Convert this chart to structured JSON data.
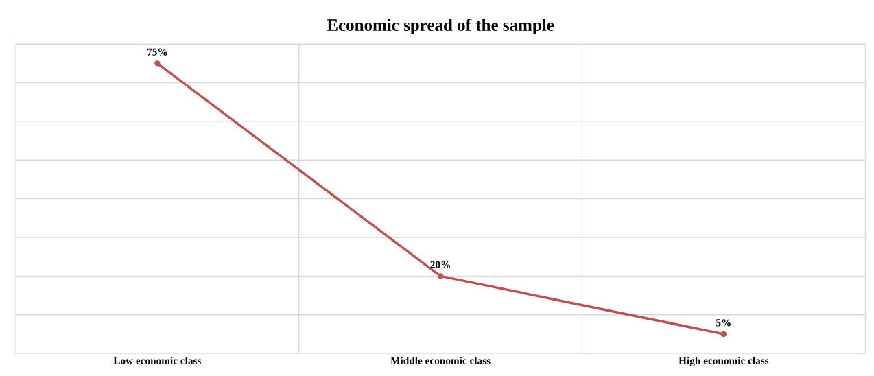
{
  "chart_data": {
    "type": "line",
    "title": "Economic spread of the sample",
    "categories": [
      "Low economic class",
      "Middle economic class",
      "High economic class"
    ],
    "series": [
      {
        "color": "#c0504d",
        "values": [
          75,
          20,
          5
        ],
        "value_labels": [
          "75%",
          "20%",
          "5%"
        ]
      }
    ],
    "ylim": [
      0,
      80
    ],
    "yticks": [
      {
        "value": 0,
        "label": null
      },
      {
        "value": 10,
        "label": null
      },
      {
        "value": 20,
        "label": null
      },
      {
        "value": 30,
        "label": null
      },
      {
        "value": 40,
        "label": null
      },
      {
        "value": 50,
        "label": null
      },
      {
        "value": 60,
        "label": null
      },
      {
        "value": 70,
        "label": null
      },
      {
        "value": 80,
        "label": null
      }
    ],
    "tick_labels": "x",
    "grid": true,
    "marker": "circle",
    "line_style": "solid",
    "legend": false
  }
}
